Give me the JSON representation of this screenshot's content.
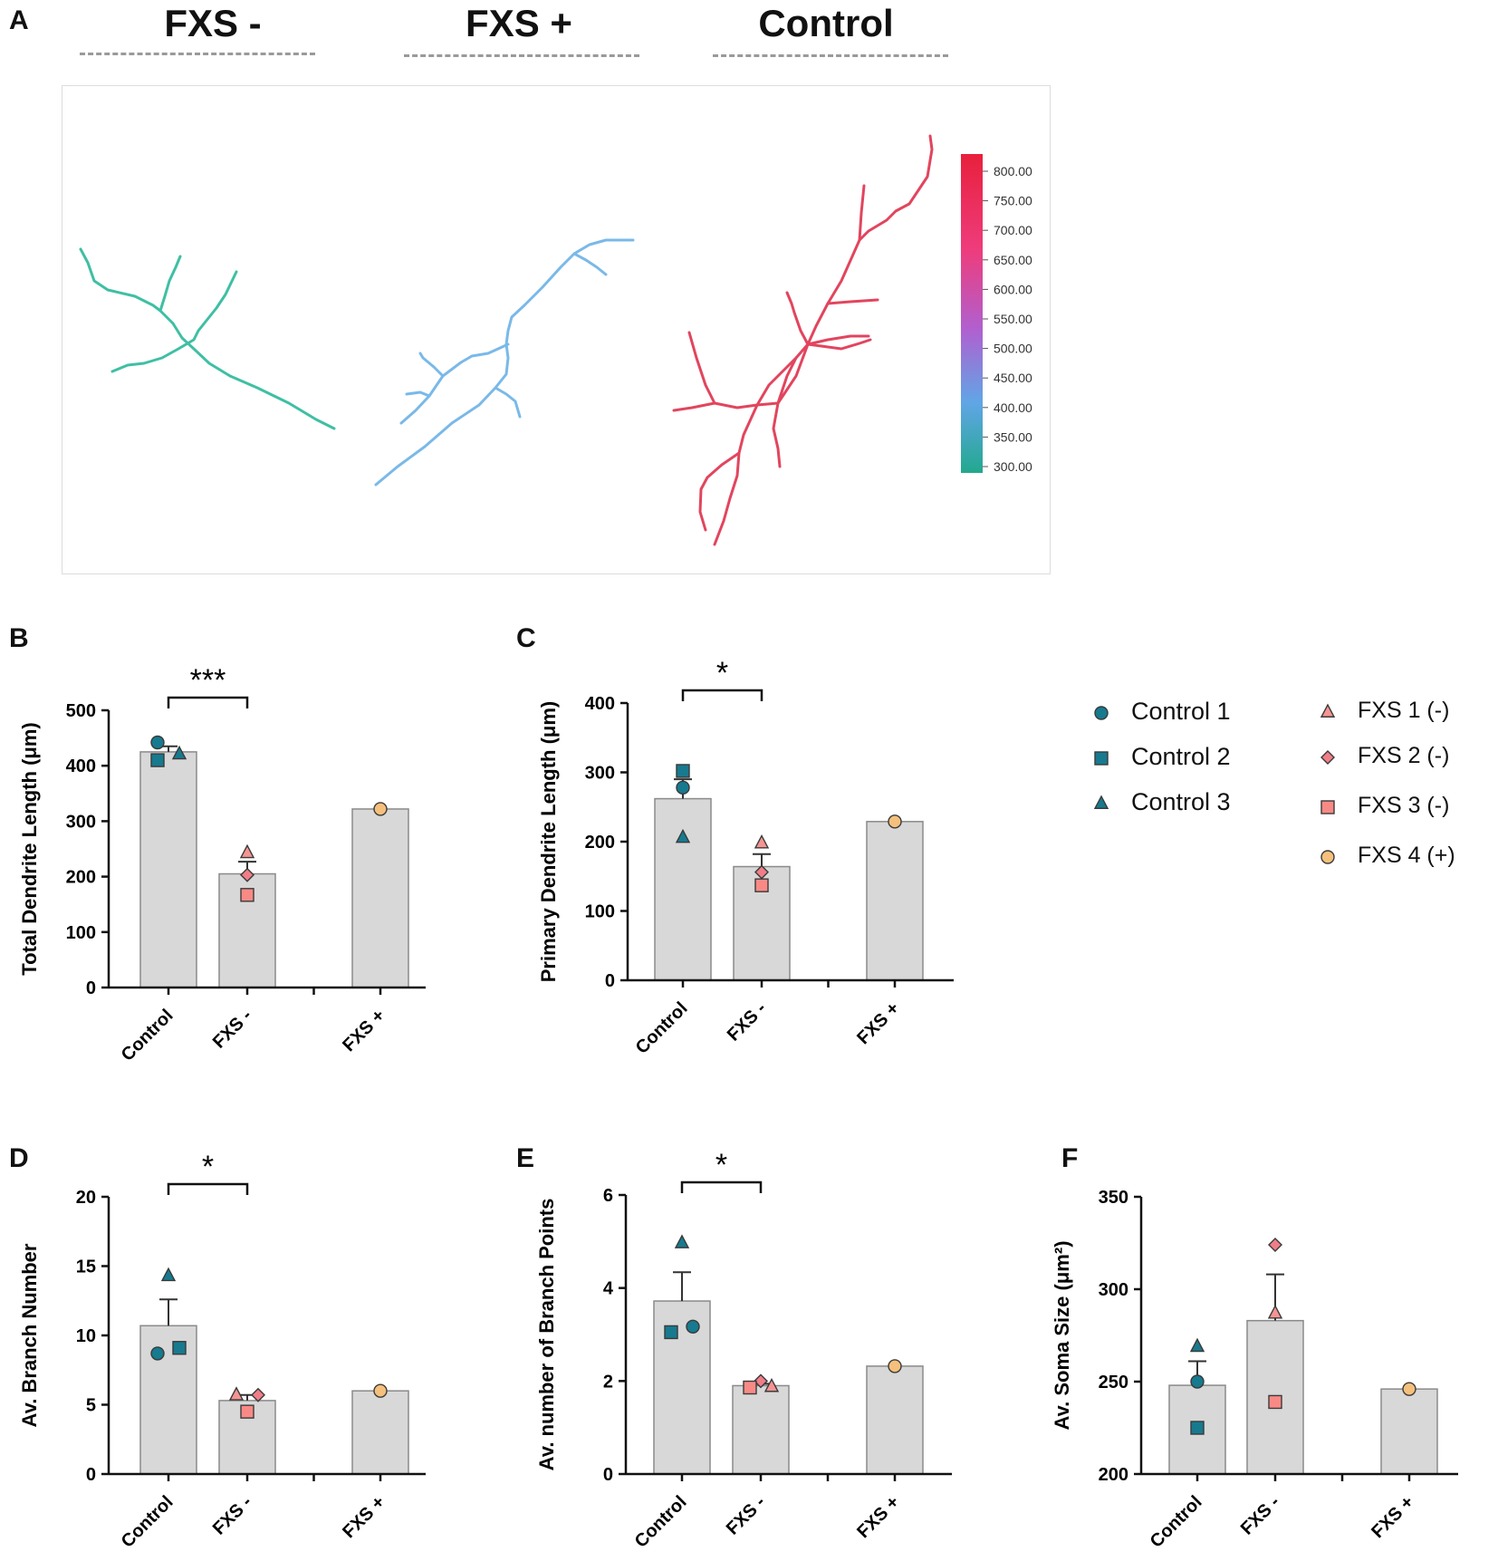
{
  "panels": {
    "a": {
      "letter": "A",
      "groups": [
        "FXS -",
        "FXS +",
        "Control"
      ],
      "colorbar": {
        "ticks": [
          "800.00",
          "750.00",
          "700.00",
          "650.00",
          "600.00",
          "550.00",
          "500.00",
          "450.00",
          "400.00",
          "350.00",
          "300.00"
        ],
        "colors": {
          "top": "#e8203c",
          "upper": "#ee3c7c",
          "mid": "#b060d0",
          "lower": "#60a6e6",
          "bottom": "#22a88e"
        }
      },
      "tracing_colors": {
        "fxs_minus": "#3fbfa4",
        "fxs_plus": "#7ab9e8",
        "control": "#e2455e"
      }
    },
    "b": {
      "letter": "B"
    },
    "c": {
      "letter": "C"
    },
    "d": {
      "letter": "D"
    },
    "e": {
      "letter": "E"
    },
    "f": {
      "letter": "F"
    }
  },
  "legend": {
    "items": [
      {
        "label": "Control 1",
        "marker": "circle",
        "color": "#177a8f"
      },
      {
        "label": "Control 2",
        "marker": "square",
        "color": "#177a8f"
      },
      {
        "label": "Control 3",
        "marker": "triangle",
        "color": "#177a8f"
      },
      {
        "label": "FXS 1 (-)",
        "marker": "triangle",
        "color": "#f59492"
      },
      {
        "label": "FXS 2 (-)",
        "marker": "diamond",
        "color": "#f07e88"
      },
      {
        "label": "FXS 3 (-)",
        "marker": "square",
        "color": "#f88a86"
      },
      {
        "label": "FXS 4 (+)",
        "marker": "circle",
        "color": "#f5c07c"
      }
    ]
  },
  "colors": {
    "bar": "#d8d8d8",
    "bar_edge": "#8a8a8a",
    "axis": "#111111"
  },
  "chart_data": [
    {
      "panel": "B",
      "type": "bar",
      "categories": [
        "Control",
        "FXS -",
        "FXS +"
      ],
      "values": [
        425,
        205,
        322
      ],
      "errors": [
        10,
        22,
        0
      ],
      "ylabel": "Total Dendrite Length (μm)",
      "ylim": [
        0,
        500
      ],
      "yticks": [
        0,
        100,
        200,
        300,
        400,
        500
      ],
      "points": [
        {
          "cat": 0,
          "value": 442,
          "subject": "Control 1"
        },
        {
          "cat": 0,
          "value": 410,
          "subject": "Control 2"
        },
        {
          "cat": 0,
          "value": 421,
          "subject": "Control 3"
        },
        {
          "cat": 1,
          "value": 243,
          "subject": "FXS 1 (-)"
        },
        {
          "cat": 1,
          "value": 203,
          "subject": "FXS 2 (-)"
        },
        {
          "cat": 1,
          "value": 167,
          "subject": "FXS 3 (-)"
        },
        {
          "cat": 2,
          "value": 322,
          "subject": "FXS 4 (+)"
        }
      ],
      "significance": {
        "from": 0,
        "to": 1,
        "label": "***"
      }
    },
    {
      "panel": "C",
      "type": "bar",
      "categories": [
        "Control",
        "FXS -",
        "FXS +"
      ],
      "values": [
        262,
        164,
        229
      ],
      "errors": [
        28,
        18,
        0
      ],
      "ylabel": "Primary Dendrite Length (μm)",
      "ylim": [
        0,
        400
      ],
      "yticks": [
        0,
        100,
        200,
        300,
        400
      ],
      "points": [
        {
          "cat": 0,
          "value": 278,
          "subject": "Control 1"
        },
        {
          "cat": 0,
          "value": 302,
          "subject": "Control 2"
        },
        {
          "cat": 0,
          "value": 206,
          "subject": "Control 3"
        },
        {
          "cat": 1,
          "value": 198,
          "subject": "FXS 1 (-)"
        },
        {
          "cat": 1,
          "value": 156,
          "subject": "FXS 2 (-)"
        },
        {
          "cat": 1,
          "value": 137,
          "subject": "FXS 3 (-)"
        },
        {
          "cat": 2,
          "value": 229,
          "subject": "FXS 4 (+)"
        }
      ],
      "significance": {
        "from": 0,
        "to": 1,
        "label": "*"
      }
    },
    {
      "panel": "D",
      "type": "bar",
      "categories": [
        "Control",
        "FXS -",
        "FXS +"
      ],
      "values": [
        10.7,
        5.3,
        6.0
      ],
      "errors": [
        1.9,
        0.4,
        0
      ],
      "ylabel": "Av. Branch Number",
      "ylim": [
        0,
        20
      ],
      "yticks": [
        0,
        5,
        10,
        15,
        20
      ],
      "points": [
        {
          "cat": 0,
          "value": 8.7,
          "subject": "Control 1"
        },
        {
          "cat": 0,
          "value": 9.1,
          "subject": "Control 2"
        },
        {
          "cat": 0,
          "value": 14.3,
          "subject": "Control 3"
        },
        {
          "cat": 1,
          "value": 5.7,
          "subject": "FXS 1 (-)"
        },
        {
          "cat": 1,
          "value": 5.7,
          "subject": "FXS 2 (-)"
        },
        {
          "cat": 1,
          "value": 4.5,
          "subject": "FXS 3 (-)"
        },
        {
          "cat": 2,
          "value": 6.0,
          "subject": "FXS 4 (+)"
        }
      ],
      "significance": {
        "from": 0,
        "to": 1,
        "label": "*"
      }
    },
    {
      "panel": "E",
      "type": "bar",
      "categories": [
        "Control",
        "FXS -",
        "FXS +"
      ],
      "values": [
        3.72,
        1.9,
        2.32
      ],
      "errors": [
        0.62,
        0.04,
        0
      ],
      "ylabel": "Av. number of Branch Points",
      "ylim": [
        0,
        6
      ],
      "yticks": [
        0,
        2,
        4,
        6
      ],
      "points": [
        {
          "cat": 0,
          "value": 3.17,
          "subject": "Control 1"
        },
        {
          "cat": 0,
          "value": 3.05,
          "subject": "Control 2"
        },
        {
          "cat": 0,
          "value": 4.97,
          "subject": "Control 3"
        },
        {
          "cat": 1,
          "value": 1.88,
          "subject": "FXS 1 (-)"
        },
        {
          "cat": 1,
          "value": 2.0,
          "subject": "FXS 2 (-)"
        },
        {
          "cat": 1,
          "value": 1.86,
          "subject": "FXS 3 (-)"
        },
        {
          "cat": 2,
          "value": 2.32,
          "subject": "FXS 4 (+)"
        }
      ],
      "significance": {
        "from": 0,
        "to": 1,
        "label": "*"
      }
    },
    {
      "panel": "F",
      "type": "bar",
      "categories": [
        "Control",
        "FXS -",
        "FXS +"
      ],
      "values": [
        248,
        283,
        246
      ],
      "errors": [
        13,
        25,
        0
      ],
      "ylabel": "Av. Soma Size (μm²)",
      "ylim": [
        200,
        350
      ],
      "yticks": [
        200,
        250,
        300,
        350
      ],
      "points": [
        {
          "cat": 0,
          "value": 250,
          "subject": "Control 1"
        },
        {
          "cat": 0,
          "value": 225,
          "subject": "Control 2"
        },
        {
          "cat": 0,
          "value": 269,
          "subject": "Control 3"
        },
        {
          "cat": 1,
          "value": 287,
          "subject": "FXS 1 (-)"
        },
        {
          "cat": 1,
          "value": 324,
          "subject": "FXS 2 (-)"
        },
        {
          "cat": 1,
          "value": 239,
          "subject": "FXS 3 (-)"
        },
        {
          "cat": 2,
          "value": 246,
          "subject": "FXS 4 (+)"
        }
      ],
      "significance": null
    }
  ]
}
